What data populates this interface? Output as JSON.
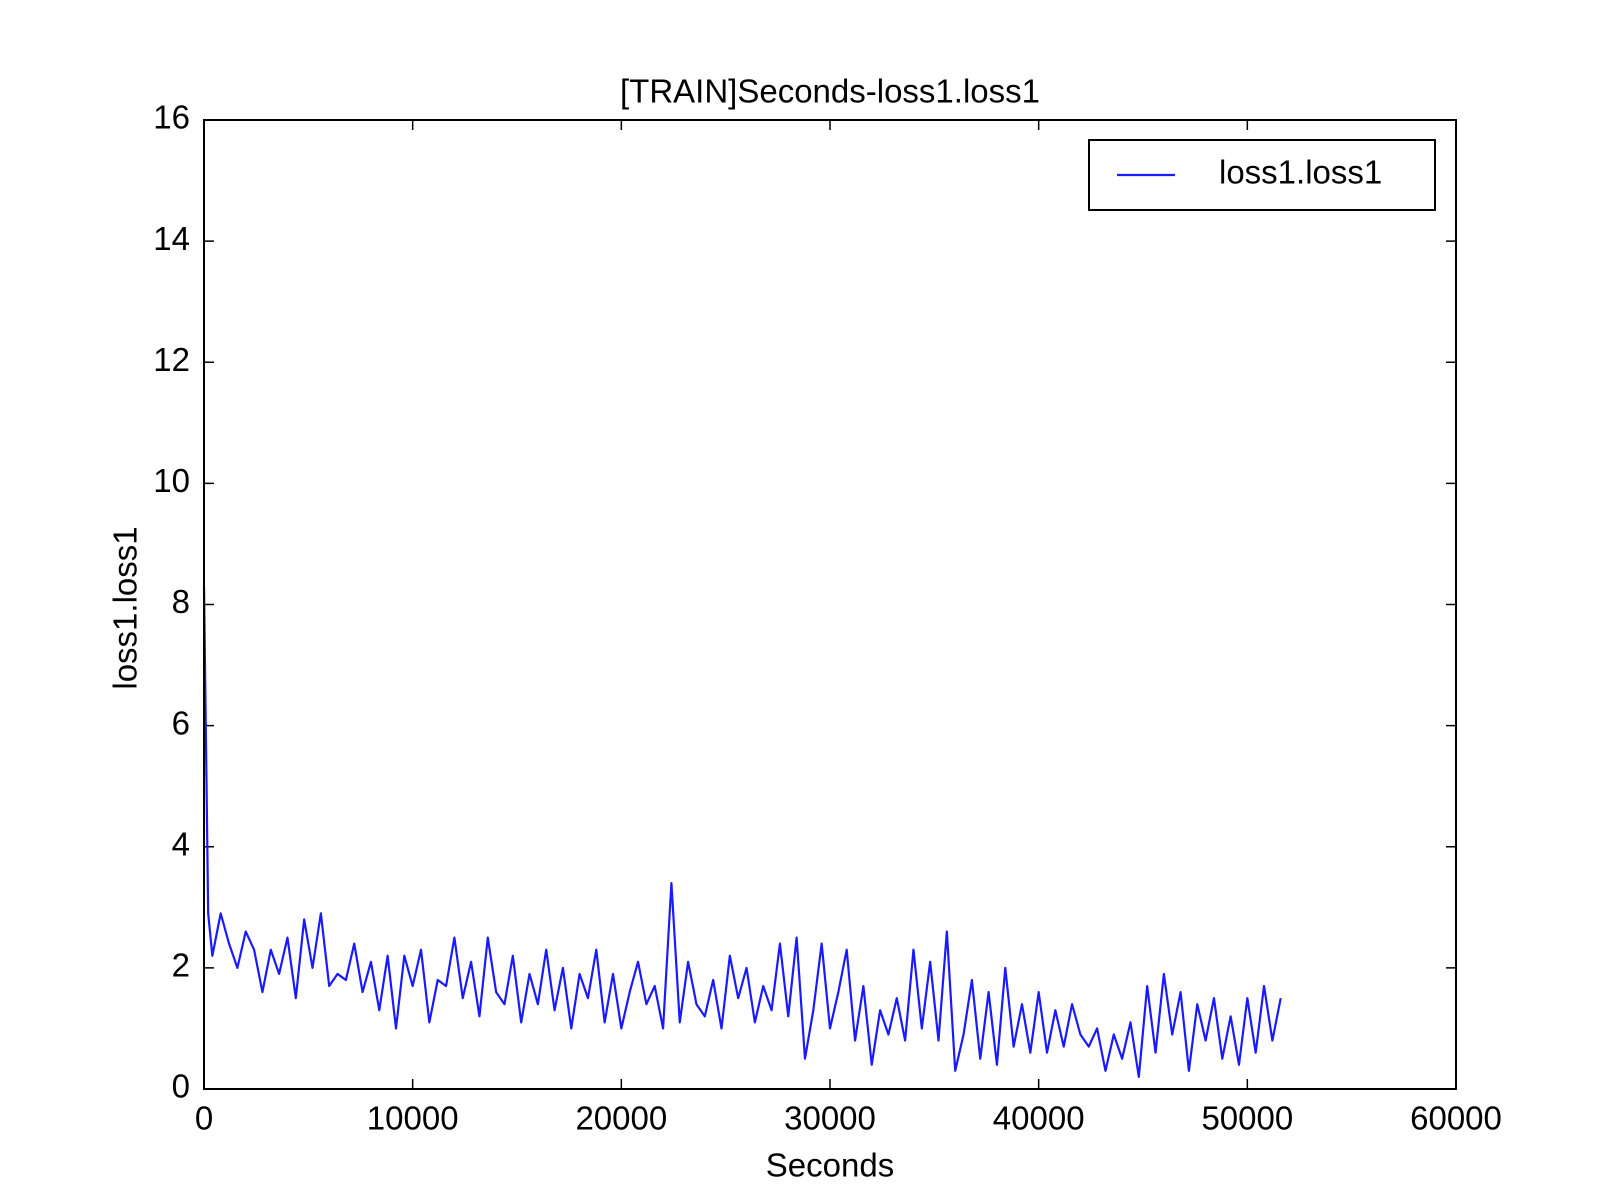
{
  "chart_data": {
    "type": "line",
    "title": "[TRAIN]Seconds-loss1.loss1",
    "x_label": "Seconds",
    "y_label": "loss1.loss1",
    "x": [
      0,
      200,
      400,
      800,
      1200,
      1600,
      2000,
      2400,
      2800,
      3200,
      3600,
      4000,
      4400,
      4800,
      5200,
      5600,
      6000,
      6400,
      6800,
      7200,
      7600,
      8000,
      8400,
      8800,
      9200,
      9600,
      10000,
      10400,
      10800,
      11200,
      11600,
      12000,
      12400,
      12800,
      13200,
      13600,
      14000,
      14400,
      14800,
      15200,
      15600,
      16000,
      16400,
      16800,
      17200,
      17600,
      18000,
      18400,
      18800,
      19200,
      19600,
      20000,
      20400,
      20800,
      21200,
      21600,
      22000,
      22400,
      22800,
      23200,
      23600,
      24000,
      24400,
      24800,
      25200,
      25600,
      26000,
      26400,
      26800,
      27200,
      27600,
      28000,
      28400,
      28800,
      29200,
      29600,
      30000,
      30400,
      30800,
      31200,
      31600,
      32000,
      32400,
      32800,
      33200,
      33600,
      34000,
      34400,
      34800,
      35200,
      35600,
      36000,
      36400,
      36800,
      37200,
      37600,
      38000,
      38400,
      38800,
      39200,
      39600,
      40000,
      40400,
      40800,
      41200,
      41600,
      42000,
      42400,
      42800,
      43200,
      43600,
      44000,
      44400,
      44800,
      45200,
      45600,
      46000,
      46400,
      46800,
      47200,
      47600,
      48000,
      48400,
      48800,
      49200,
      49600,
      50000,
      50400,
      50800,
      51200,
      51600
    ],
    "series": [
      {
        "name": "loss1.loss1",
        "color": "#1a1aff",
        "values": [
          8.3,
          2.9,
          2.2,
          2.9,
          2.4,
          2.0,
          2.6,
          2.3,
          1.6,
          2.3,
          1.9,
          2.5,
          1.5,
          2.8,
          2.0,
          2.9,
          1.7,
          1.9,
          1.8,
          2.4,
          1.6,
          2.1,
          1.3,
          2.2,
          1.0,
          2.2,
          1.7,
          2.3,
          1.1,
          1.8,
          1.7,
          2.5,
          1.5,
          2.1,
          1.2,
          2.5,
          1.6,
          1.4,
          2.2,
          1.1,
          1.9,
          1.4,
          2.3,
          1.3,
          2.0,
          1.0,
          1.9,
          1.5,
          2.3,
          1.1,
          1.9,
          1.0,
          1.6,
          2.1,
          1.4,
          1.7,
          1.0,
          3.4,
          1.1,
          2.1,
          1.4,
          1.2,
          1.8,
          1.0,
          2.2,
          1.5,
          2.0,
          1.1,
          1.7,
          1.3,
          2.4,
          1.2,
          2.5,
          0.5,
          1.3,
          2.4,
          1.0,
          1.6,
          2.3,
          0.8,
          1.7,
          0.4,
          1.3,
          0.9,
          1.5,
          0.8,
          2.3,
          1.0,
          2.1,
          0.8,
          2.6,
          0.3,
          0.9,
          1.8,
          0.5,
          1.6,
          0.4,
          2.0,
          0.7,
          1.4,
          0.6,
          1.6,
          0.6,
          1.3,
          0.7,
          1.4,
          0.9,
          0.7,
          1.0,
          0.3,
          0.9,
          0.5,
          1.1,
          0.2,
          1.7,
          0.6,
          1.9,
          0.9,
          1.6,
          0.3,
          1.4,
          0.8,
          1.5,
          0.5,
          1.2,
          0.4,
          1.5,
          0.6,
          1.7,
          0.8,
          1.5
        ]
      }
    ],
    "xlim": [
      0,
      60000
    ],
    "xticks": [
      0,
      10000,
      20000,
      30000,
      40000,
      50000,
      60000
    ],
    "ylim": [
      0,
      16
    ],
    "yticks": [
      0,
      2,
      4,
      6,
      8,
      10,
      12,
      14,
      16
    ],
    "legend": "upper right"
  }
}
